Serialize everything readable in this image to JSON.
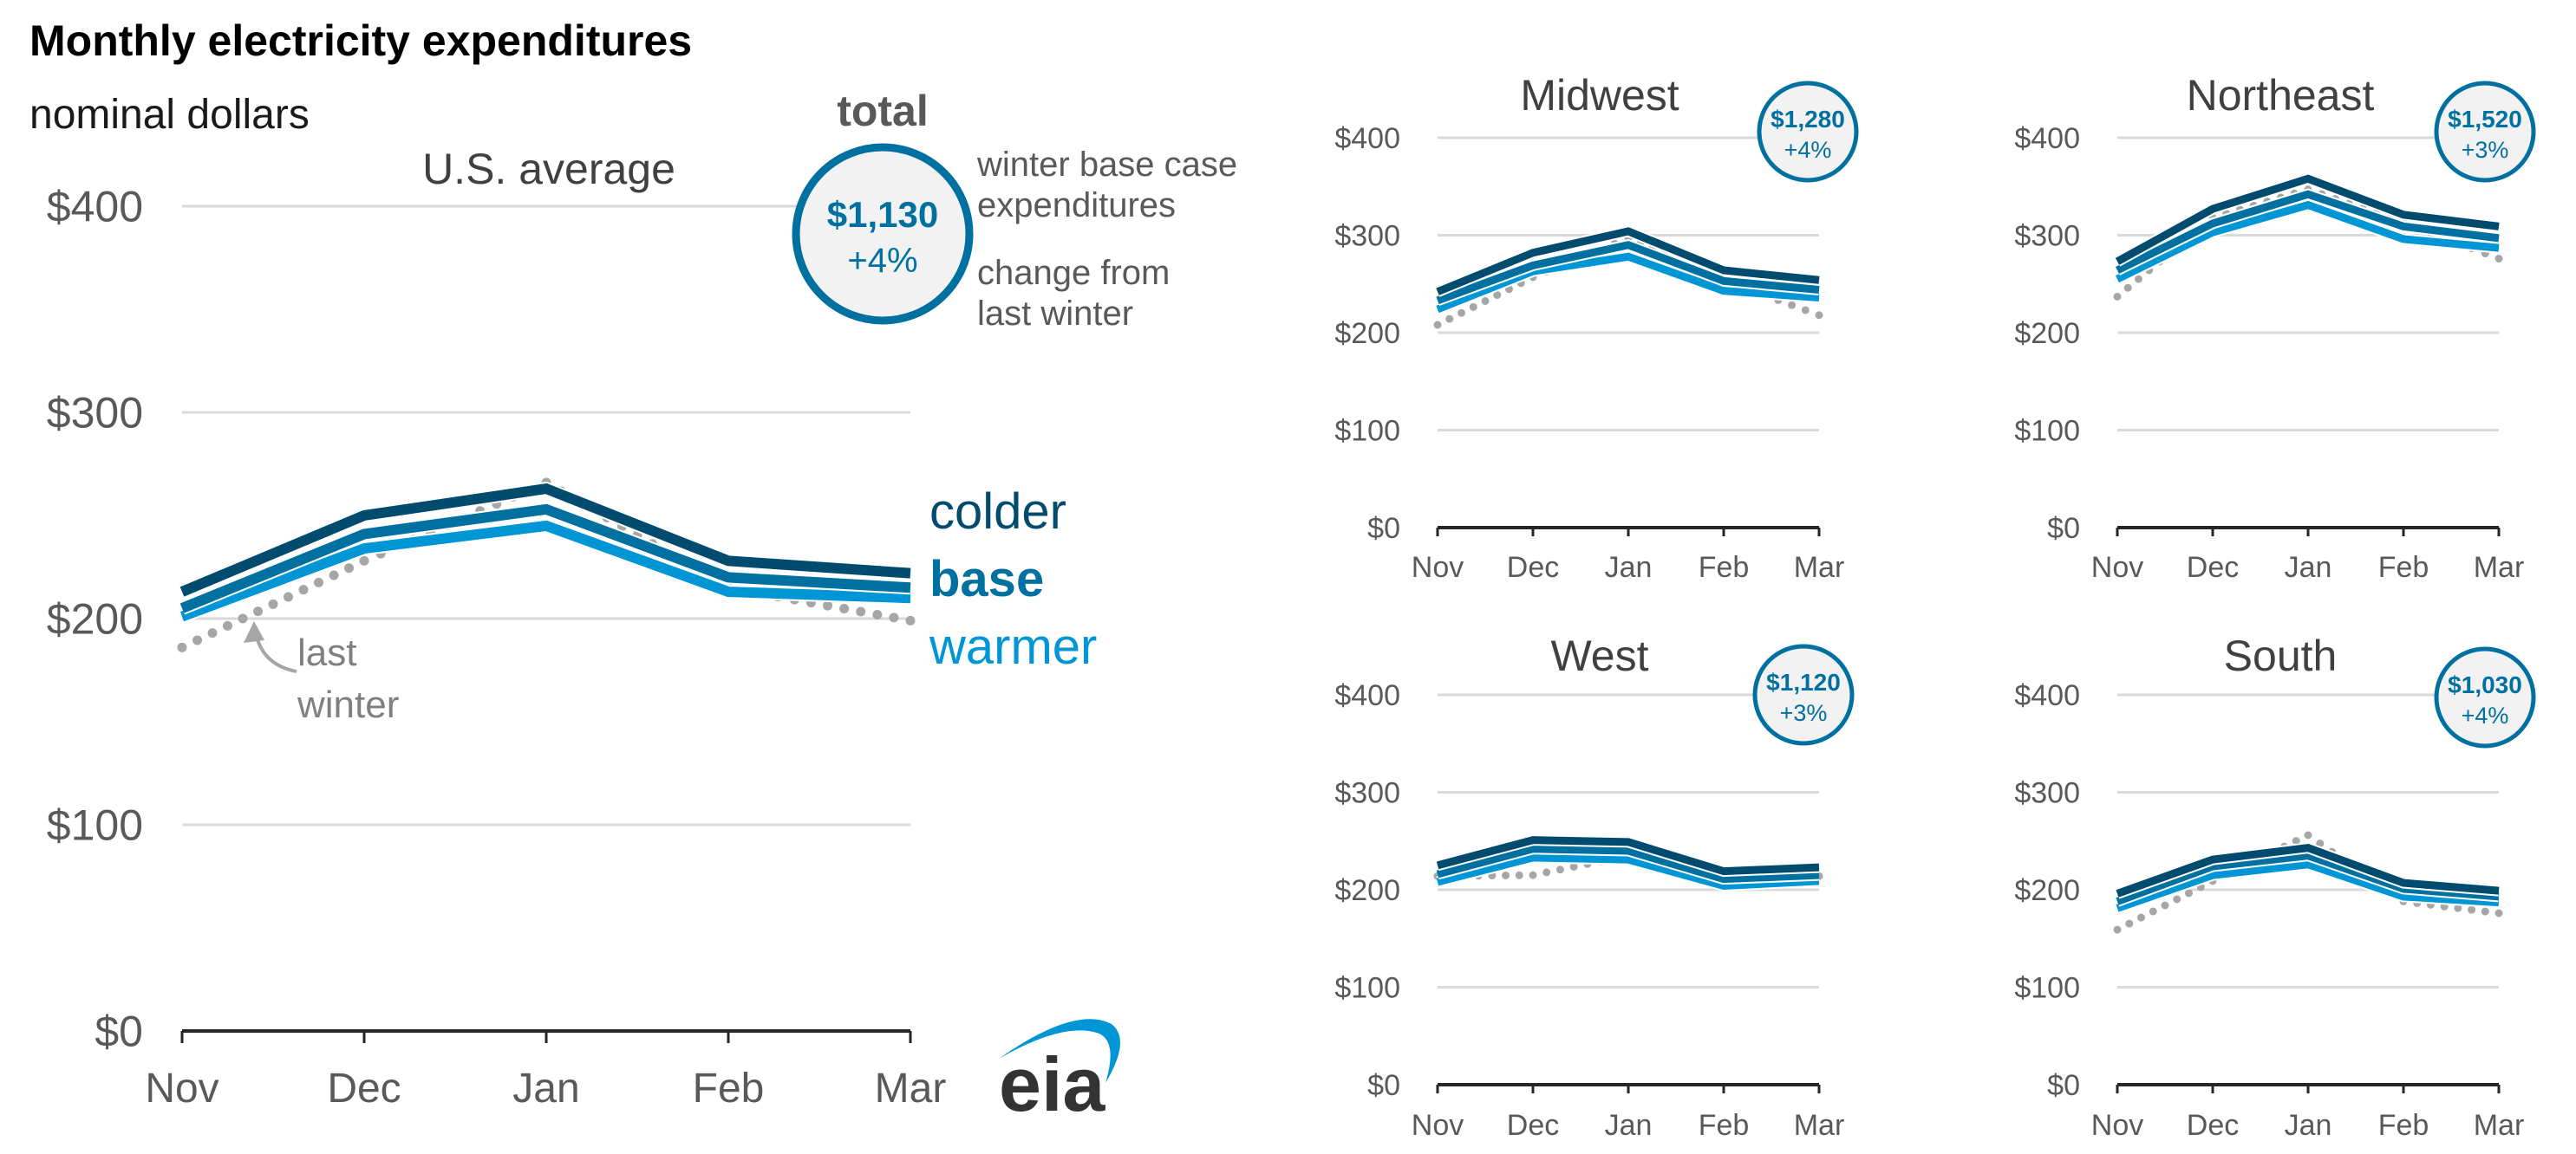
{
  "header": {
    "title": "Monthly electricity expenditures",
    "subtitle": "nominal dollars"
  },
  "legend": {
    "total_label": "total",
    "bubble_desc_line1": "winter base case",
    "bubble_desc_line2": "expenditures",
    "change_desc_line1": "change from",
    "change_desc_line2": "last winter",
    "colder": "colder",
    "base": "base",
    "warmer": "warmer",
    "last_winter_line1": "last",
    "last_winter_line2": "winter"
  },
  "colors": {
    "colder": "#004b6e",
    "base": "#0070a0",
    "warmer": "#0096d6",
    "last_winter": "#a6a6a6",
    "bubble_border": "#0070a0",
    "bubble_fill": "#f2f2f2"
  },
  "logo": {
    "text": "eia"
  },
  "chart_data": [
    {
      "type": "line",
      "title": "U.S. average",
      "total": "$1,130",
      "change": "+4%",
      "categories": [
        "Nov",
        "Dec",
        "Jan",
        "Feb",
        "Mar"
      ],
      "y_ticks": [
        "$0",
        "$100",
        "$200",
        "$300",
        "$400"
      ],
      "ylim": [
        0,
        400
      ],
      "grid": true,
      "series": [
        {
          "name": "colder",
          "values": [
            213,
            250,
            263,
            228,
            222
          ]
        },
        {
          "name": "base",
          "values": [
            205,
            241,
            253,
            220,
            215
          ]
        },
        {
          "name": "warmer",
          "values": [
            201,
            234,
            245,
            213,
            210
          ]
        },
        {
          "name": "last winter",
          "values": [
            186,
            228,
            266,
            215,
            199
          ]
        }
      ]
    },
    {
      "type": "line",
      "title": "Midwest",
      "total": "$1,280",
      "change": "+4%",
      "categories": [
        "Nov",
        "Dec",
        "Jan",
        "Feb",
        "Mar"
      ],
      "y_ticks": [
        "$0",
        "$100",
        "$200",
        "$300",
        "$400"
      ],
      "ylim": [
        0,
        400
      ],
      "grid": true,
      "series": [
        {
          "name": "colder",
          "values": [
            242,
            282,
            304,
            264,
            254
          ]
        },
        {
          "name": "base",
          "values": [
            233,
            269,
            290,
            253,
            244
          ]
        },
        {
          "name": "warmer",
          "values": [
            224,
            263,
            278,
            243,
            236
          ]
        },
        {
          "name": "last winter",
          "values": [
            208,
            257,
            297,
            254,
            218
          ]
        }
      ]
    },
    {
      "type": "line",
      "title": "Northeast",
      "total": "$1,520",
      "change": "+3%",
      "categories": [
        "Nov",
        "Dec",
        "Jan",
        "Feb",
        "Mar"
      ],
      "y_ticks": [
        "$0",
        "$100",
        "$200",
        "$300",
        "$400"
      ],
      "ylim": [
        0,
        400
      ],
      "grid": true,
      "series": [
        {
          "name": "colder",
          "values": [
            273,
            327,
            358,
            321,
            309
          ]
        },
        {
          "name": "base",
          "values": [
            264,
            312,
            342,
            309,
            297
          ]
        },
        {
          "name": "warmer",
          "values": [
            255,
            303,
            331,
            296,
            287
          ]
        },
        {
          "name": "last winter",
          "values": [
            237,
            318,
            347,
            313,
            276
          ]
        }
      ]
    },
    {
      "type": "line",
      "title": "West",
      "total": "$1,120",
      "change": "+3%",
      "categories": [
        "Nov",
        "Dec",
        "Jan",
        "Feb",
        "Mar"
      ],
      "y_ticks": [
        "$0",
        "$100",
        "$200",
        "$300",
        "$400"
      ],
      "ylim": [
        0,
        400
      ],
      "grid": true,
      "series": [
        {
          "name": "colder",
          "values": [
            225,
            251,
            249,
            219,
            223
          ]
        },
        {
          "name": "base",
          "values": [
            216,
            242,
            240,
            211,
            215
          ]
        },
        {
          "name": "warmer",
          "values": [
            208,
            233,
            231,
            204,
            209
          ]
        },
        {
          "name": "last winter",
          "values": [
            214,
            215,
            235,
            210,
            214
          ]
        }
      ]
    },
    {
      "type": "line",
      "title": "South",
      "total": "$1,030",
      "change": "+4%",
      "categories": [
        "Nov",
        "Dec",
        "Jan",
        "Feb",
        "Mar"
      ],
      "y_ticks": [
        "$0",
        "$100",
        "$200",
        "$300",
        "$400"
      ],
      "ylim": [
        0,
        400
      ],
      "grid": true,
      "series": [
        {
          "name": "colder",
          "values": [
            196,
            231,
            243,
            207,
            199
          ]
        },
        {
          "name": "base",
          "values": [
            188,
            224,
            235,
            201,
            193
          ]
        },
        {
          "name": "warmer",
          "values": [
            181,
            215,
            226,
            193,
            187
          ]
        },
        {
          "name": "last winter",
          "values": [
            159,
            209,
            256,
            188,
            176
          ]
        }
      ]
    }
  ]
}
